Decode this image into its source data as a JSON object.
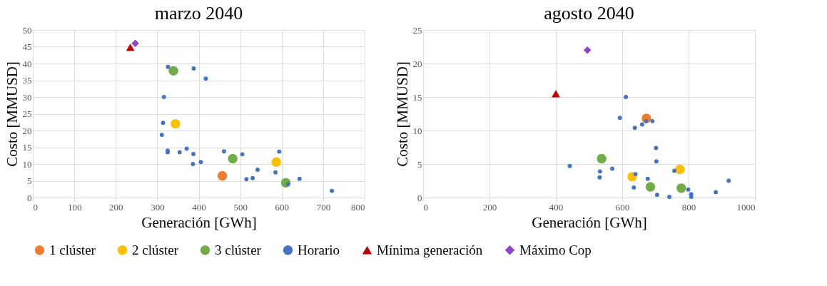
{
  "chart_data": [
    {
      "type": "scatter",
      "title": "marzo 2040",
      "xlabel": "Generación [GWh]",
      "ylabel": "Costo [MMUSD]",
      "xlim": [
        0,
        800
      ],
      "xticks": [
        0,
        100,
        200,
        300,
        400,
        500,
        600,
        700,
        800
      ],
      "ylim": [
        0,
        50
      ],
      "yticks": [
        0,
        5,
        10,
        15,
        20,
        25,
        30,
        35,
        40,
        45,
        50
      ],
      "grid": true,
      "legend": "bottom",
      "series": [
        {
          "name": "1 clúster",
          "color": "#ed7d31",
          "marker": "circle",
          "x": [
            457
          ],
          "values": [
            6.5
          ]
        },
        {
          "name": "2 clúster",
          "color": "#ffc000",
          "marker": "circle",
          "x": [
            344,
            587
          ],
          "values": [
            22,
            10.6
          ]
        },
        {
          "name": "3 clúster",
          "color": "#70ad47",
          "marker": "circle",
          "x": [
            339,
            482,
            610
          ],
          "values": [
            37.8,
            11.6,
            4.4
          ]
        },
        {
          "name": "Horario",
          "color": "#4472c4",
          "marker": "circle",
          "x": [
            326,
            388,
            417,
            316,
            314,
            311,
            325,
            325,
            354,
            371,
            387,
            386,
            405,
            461,
            505,
            594,
            542,
            585,
            530,
            515,
            615,
            643,
            721
          ],
          "values": [
            39,
            38.5,
            35.5,
            30,
            22.3,
            18.7,
            14,
            13.5,
            13.5,
            14.6,
            13,
            10,
            10.6,
            13.8,
            12.9,
            13.7,
            8.3,
            7.5,
            5.8,
            5.5,
            4,
            5.6,
            2
          ]
        },
        {
          "name": "Mínima generación",
          "color": "#c00000",
          "marker": "triangle",
          "x": [
            235
          ],
          "values": [
            44.8
          ]
        },
        {
          "name": "Máximo Cop",
          "color": "#8e44c9",
          "marker": "diamond",
          "x": [
            247
          ],
          "values": [
            46
          ]
        }
      ]
    },
    {
      "type": "scatter",
      "title": "agosto 2040",
      "xlabel": "Generación [GWh]",
      "ylabel": "Costo [MMUSD]",
      "xlim": [
        0,
        1000
      ],
      "xticks": [
        0,
        200,
        400,
        600,
        800,
        1000
      ],
      "ylim": [
        0,
        25
      ],
      "yticks": [
        0,
        5,
        10,
        15,
        20,
        25
      ],
      "grid": true,
      "legend": "bottom",
      "series": [
        {
          "name": "1 clúster",
          "color": "#ed7d31",
          "marker": "circle",
          "x": [
            673
          ],
          "values": [
            11.8
          ]
        },
        {
          "name": "2 clúster",
          "color": "#ffc000",
          "marker": "circle",
          "x": [
            630,
            774
          ],
          "values": [
            3.1,
            4.2
          ]
        },
        {
          "name": "3 clúster",
          "color": "#70ad47",
          "marker": "circle",
          "x": [
            538,
            685,
            778
          ],
          "values": [
            5.8,
            1.6,
            1.4
          ]
        },
        {
          "name": "Horario",
          "color": "#4472c4",
          "marker": "circle",
          "x": [
            611,
            593,
            638,
            660,
            691,
            702,
            703,
            442,
            533,
            532,
            570,
            640,
            635,
            677,
            705,
            742,
            757,
            799,
            808,
            808,
            882,
            921,
            672
          ],
          "values": [
            15,
            11.9,
            10.4,
            10.9,
            11.4,
            7.4,
            5.4,
            4.7,
            3.9,
            3,
            4.3,
            3.5,
            1.5,
            2.8,
            0.4,
            0.1,
            4,
            1.2,
            0.5,
            0.1,
            0.8,
            2.5,
            11.4
          ]
        },
        {
          "name": "Mínima generación",
          "color": "#c00000",
          "marker": "triangle",
          "x": [
            400
          ],
          "values": [
            15.5
          ]
        },
        {
          "name": "Máximo Cop",
          "color": "#8e44c9",
          "marker": "diamond",
          "x": [
            495
          ],
          "values": [
            22
          ]
        }
      ]
    }
  ]
}
